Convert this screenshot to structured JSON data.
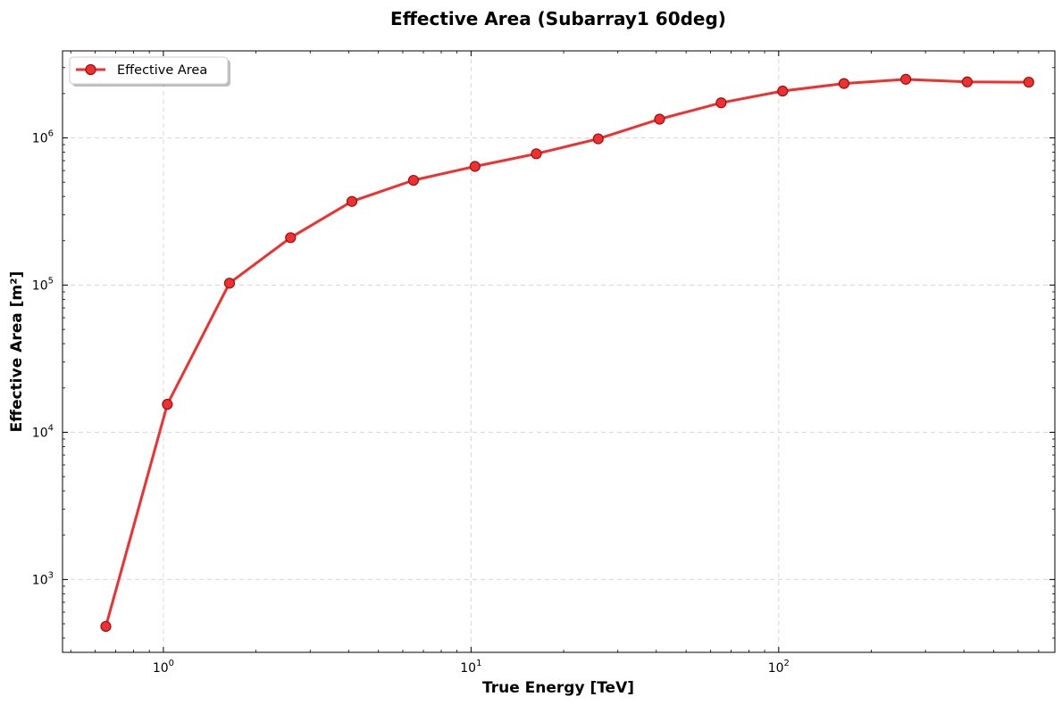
{
  "chart_data": {
    "type": "line",
    "title": "Effective Area (Subarray1 60deg)",
    "xlabel": "True Energy [TeV]",
    "ylabel": "Effective Area [m²]",
    "xscale": "log",
    "yscale": "log",
    "xlim": [
      0.47,
      790
    ],
    "ylim": [
      320,
      3900000
    ],
    "grid": true,
    "legend_position": "top-left",
    "x_ticks": [
      {
        "value": 1,
        "base": "10",
        "exp": "0"
      },
      {
        "value": 10,
        "base": "10",
        "exp": "1"
      },
      {
        "value": 100,
        "base": "10",
        "exp": "2"
      }
    ],
    "y_ticks": [
      {
        "value": 1000,
        "base": "10",
        "exp": "3"
      },
      {
        "value": 10000,
        "base": "10",
        "exp": "4"
      },
      {
        "value": 100000,
        "base": "10",
        "exp": "5"
      },
      {
        "value": 1000000,
        "base": "10",
        "exp": "6"
      }
    ],
    "series": [
      {
        "name": "Effective Area",
        "color": "#f03030",
        "marker_edge": "#9a1010",
        "x": [
          0.65,
          1.03,
          1.64,
          2.59,
          4.1,
          6.5,
          10.3,
          16.3,
          25.9,
          41.0,
          65.0,
          103.0,
          163.0,
          259.0,
          410.0,
          650.0
        ],
        "y": [
          480,
          15500,
          103000,
          210000,
          370000,
          515000,
          640000,
          780000,
          985000,
          1340000,
          1730000,
          2080000,
          2340000,
          2500000,
          2400000,
          2390000
        ]
      }
    ]
  }
}
